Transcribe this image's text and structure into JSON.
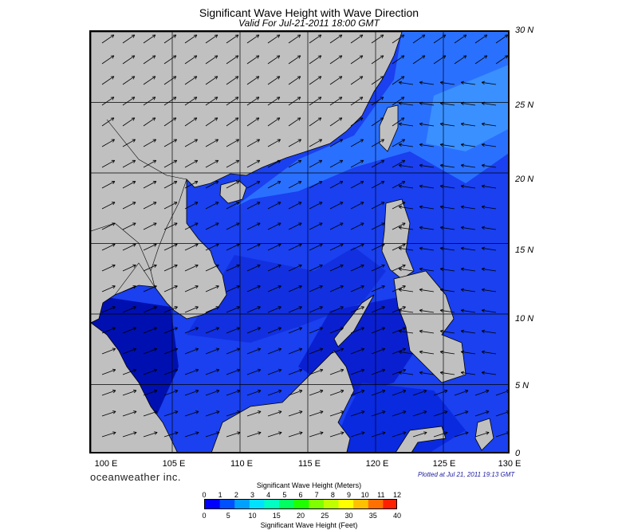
{
  "header": {
    "title": "Significant Wave Height with Wave Direction",
    "subtitle": "Valid For Jul-21-2011 18:00 GMT"
  },
  "map": {
    "lon_range": [
      99,
      130
    ],
    "lat_range": [
      0,
      30
    ],
    "lat_labels": [
      "30 N",
      "25 N",
      "20 N",
      "15 N",
      "10 N",
      "5 N",
      "0"
    ],
    "lon_labels": [
      "100 E",
      "105 E",
      "110 E",
      "115 E",
      "120 E",
      "125 E",
      "130 E"
    ],
    "grid_lines": true,
    "land_color": "#c0c0c0",
    "arrow_color": "#000000",
    "wave_direction_general": "toward north-east west of Philippines, toward west east of Philippines"
  },
  "footer": {
    "brand": "oceanweather inc.",
    "plotted": "Plotted at Jul 21, 2011 19:13 GMT"
  },
  "colorbar": {
    "title": "Significant Wave Height (Meters)",
    "meters_ticks": [
      "0",
      "1",
      "2",
      "3",
      "4",
      "5",
      "6",
      "7",
      "8",
      "9",
      "10",
      "11",
      "12"
    ],
    "feet_ticks": [
      "0",
      "5",
      "10",
      "15",
      "20",
      "25",
      "30",
      "35",
      "40"
    ],
    "footer": "Significant Wave Height (Feet)",
    "colors": [
      "#0000ff",
      "#0050ff",
      "#00a0ff",
      "#00e0ff",
      "#00ffc0",
      "#00ff60",
      "#20ff00",
      "#80ff00",
      "#c0ff00",
      "#ffff00",
      "#ffc000",
      "#ff7000",
      "#ff2000"
    ]
  }
}
